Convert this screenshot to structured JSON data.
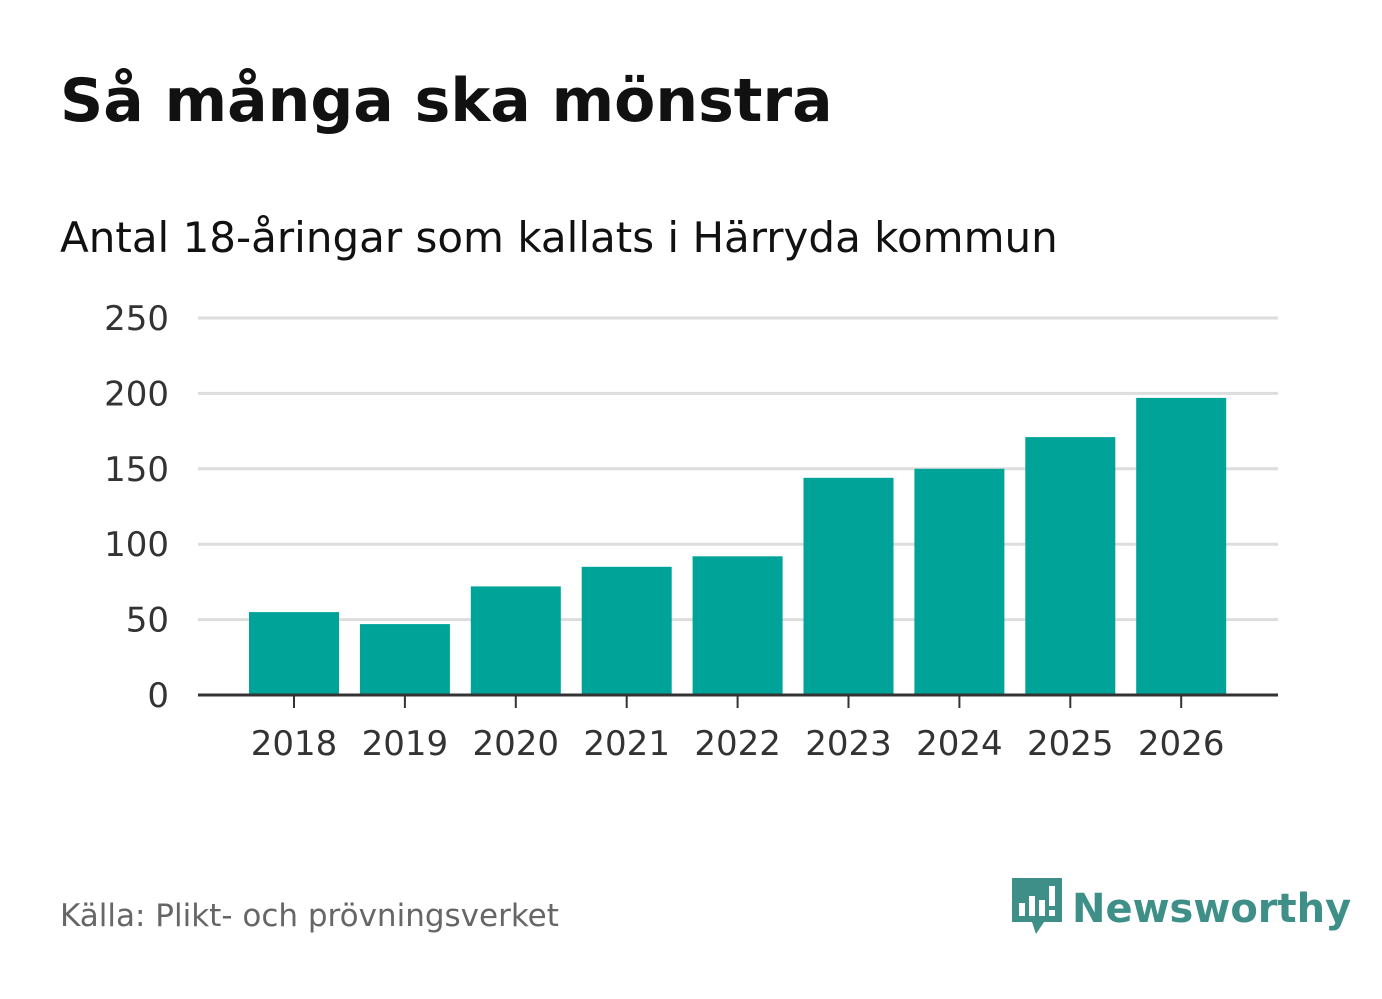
{
  "header": {
    "title": "Så många ska mönstra",
    "subtitle": "Antal 18-åringar som kallats i Härryda kommun"
  },
  "footer": {
    "source": "Källa: Plikt- och prövningsverket",
    "brand": "Newsworthy",
    "brand_color": "#3d8f88"
  },
  "colors": {
    "bar": "#00a398",
    "grid": "#dddddd",
    "axis": "#333333"
  },
  "chart_data": {
    "type": "bar",
    "title": "Så många ska mönstra",
    "subtitle": "Antal 18-åringar som kallats i Härryda kommun",
    "xlabel": "",
    "ylabel": "",
    "categories": [
      "2018",
      "2019",
      "2020",
      "2021",
      "2022",
      "2023",
      "2024",
      "2025",
      "2026"
    ],
    "values": [
      55,
      47,
      72,
      85,
      92,
      144,
      150,
      171,
      197
    ],
    "ylim": [
      0,
      250
    ],
    "yticks": [
      0,
      50,
      100,
      150,
      200,
      250
    ],
    "grid": true,
    "legend": "none"
  }
}
